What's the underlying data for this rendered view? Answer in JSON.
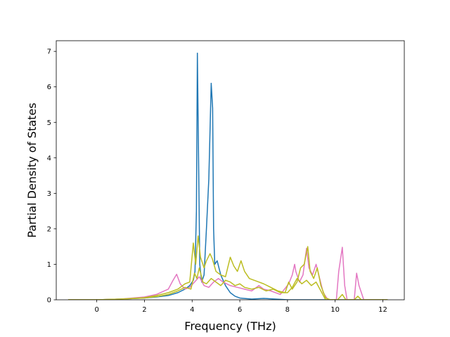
{
  "chart_data": {
    "type": "line",
    "title": "",
    "xlabel": "Frequency (THz)",
    "ylabel": "Partial Density of States",
    "xlim": [
      -1.7,
      12.9
    ],
    "ylim": [
      0,
      7.3
    ],
    "x_ticks": [
      0,
      2,
      4,
      6,
      8,
      10,
      12
    ],
    "y_ticks": [
      0,
      1,
      2,
      3,
      4,
      5,
      6,
      7
    ],
    "grid": false,
    "legend": "none",
    "series": [
      {
        "color": "#1f77b4",
        "points": [
          [
            -1.2,
            0
          ],
          [
            0,
            0
          ],
          [
            1,
            0.02
          ],
          [
            2,
            0.05
          ],
          [
            2.5,
            0.08
          ],
          [
            3,
            0.12
          ],
          [
            3.4,
            0.2
          ],
          [
            3.7,
            0.3
          ],
          [
            3.9,
            0.4
          ],
          [
            4.05,
            0.55
          ],
          [
            4.12,
            0.8
          ],
          [
            4.18,
            2.5
          ],
          [
            4.22,
            6.95
          ],
          [
            4.27,
            4
          ],
          [
            4.32,
            1
          ],
          [
            4.4,
            0.5
          ],
          [
            4.5,
            0.7
          ],
          [
            4.6,
            2
          ],
          [
            4.7,
            3.4
          ],
          [
            4.8,
            6.1
          ],
          [
            4.86,
            5.4
          ],
          [
            4.9,
            2
          ],
          [
            4.95,
            1
          ],
          [
            5.05,
            1.1
          ],
          [
            5.2,
            0.7
          ],
          [
            5.4,
            0.4
          ],
          [
            5.6,
            0.2
          ],
          [
            5.8,
            0.1
          ],
          [
            6,
            0.05
          ],
          [
            6.5,
            0.02
          ],
          [
            7,
            0.04
          ],
          [
            7.5,
            0.02
          ],
          [
            8,
            0
          ],
          [
            12.2,
            0
          ]
        ]
      },
      {
        "color": "#e377c2",
        "points": [
          [
            -1.2,
            0
          ],
          [
            0,
            0
          ],
          [
            1,
            0.02
          ],
          [
            2,
            0.08
          ],
          [
            2.5,
            0.15
          ],
          [
            3,
            0.3
          ],
          [
            3.2,
            0.55
          ],
          [
            3.35,
            0.72
          ],
          [
            3.5,
            0.45
          ],
          [
            3.7,
            0.3
          ],
          [
            3.9,
            0.35
          ],
          [
            4.1,
            0.5
          ],
          [
            4.3,
            0.65
          ],
          [
            4.5,
            0.4
          ],
          [
            4.7,
            0.35
          ],
          [
            4.9,
            0.5
          ],
          [
            5.1,
            0.6
          ],
          [
            5.3,
            0.5
          ],
          [
            5.6,
            0.4
          ],
          [
            5.9,
            0.35
          ],
          [
            6.2,
            0.3
          ],
          [
            6.5,
            0.25
          ],
          [
            6.8,
            0.4
          ],
          [
            7,
            0.3
          ],
          [
            7.3,
            0.25
          ],
          [
            7.7,
            0.15
          ],
          [
            8.05,
            0.45
          ],
          [
            8.2,
            0.7
          ],
          [
            8.3,
            1.0
          ],
          [
            8.35,
            0.8
          ],
          [
            8.5,
            0.5
          ],
          [
            8.65,
            0.7
          ],
          [
            8.8,
            1.45
          ],
          [
            8.9,
            0.9
          ],
          [
            9.05,
            0.7
          ],
          [
            9.2,
            1.0
          ],
          [
            9.35,
            0.6
          ],
          [
            9.5,
            0.2
          ],
          [
            9.7,
            0
          ],
          [
            10.05,
            0
          ],
          [
            10.15,
            0.8
          ],
          [
            10.3,
            1.48
          ],
          [
            10.4,
            0.4
          ],
          [
            10.5,
            0
          ],
          [
            10.8,
            0
          ],
          [
            10.9,
            0.75
          ],
          [
            11,
            0.4
          ],
          [
            11.2,
            0
          ],
          [
            12.2,
            0
          ]
        ]
      },
      {
        "color": "#bcbd22",
        "points": [
          [
            -1.2,
            0
          ],
          [
            0,
            0
          ],
          [
            1,
            0.02
          ],
          [
            2,
            0.06
          ],
          [
            2.5,
            0.12
          ],
          [
            3,
            0.2
          ],
          [
            3.4,
            0.3
          ],
          [
            3.7,
            0.45
          ],
          [
            3.9,
            0.5
          ],
          [
            4.05,
            1.6
          ],
          [
            4.15,
            1.0
          ],
          [
            4.25,
            1.8
          ],
          [
            4.35,
            1.2
          ],
          [
            4.5,
            0.9
          ],
          [
            4.6,
            1.1
          ],
          [
            4.75,
            1.3
          ],
          [
            4.85,
            1.15
          ],
          [
            5,
            0.8
          ],
          [
            5.2,
            0.7
          ],
          [
            5.4,
            0.65
          ],
          [
            5.6,
            1.2
          ],
          [
            5.75,
            0.95
          ],
          [
            5.9,
            0.8
          ],
          [
            6.05,
            1.1
          ],
          [
            6.2,
            0.8
          ],
          [
            6.4,
            0.6
          ],
          [
            6.6,
            0.55
          ],
          [
            6.8,
            0.5
          ],
          [
            7,
            0.45
          ],
          [
            7.3,
            0.35
          ],
          [
            7.6,
            0.25
          ],
          [
            7.9,
            0.2
          ],
          [
            8.05,
            0.5
          ],
          [
            8.2,
            0.3
          ],
          [
            8.4,
            0.5
          ],
          [
            8.55,
            0.9
          ],
          [
            8.7,
            1.0
          ],
          [
            8.85,
            1.5
          ],
          [
            8.95,
            0.8
          ],
          [
            9.1,
            0.6
          ],
          [
            9.25,
            0.9
          ],
          [
            9.4,
            0.4
          ],
          [
            9.6,
            0.05
          ],
          [
            9.8,
            0
          ],
          [
            12.2,
            0
          ]
        ]
      },
      {
        "color": "#bcbd22",
        "points": [
          [
            -1.2,
            0
          ],
          [
            0,
            0
          ],
          [
            1,
            0.02
          ],
          [
            2,
            0.05
          ],
          [
            2.6,
            0.1
          ],
          [
            3,
            0.15
          ],
          [
            3.4,
            0.25
          ],
          [
            3.7,
            0.35
          ],
          [
            3.95,
            0.3
          ],
          [
            4.1,
            0.75
          ],
          [
            4.2,
            0.6
          ],
          [
            4.3,
            0.9
          ],
          [
            4.45,
            0.5
          ],
          [
            4.6,
            0.45
          ],
          [
            4.8,
            0.6
          ],
          [
            5,
            0.5
          ],
          [
            5.2,
            0.4
          ],
          [
            5.4,
            0.55
          ],
          [
            5.6,
            0.5
          ],
          [
            5.8,
            0.4
          ],
          [
            6,
            0.45
          ],
          [
            6.2,
            0.35
          ],
          [
            6.5,
            0.3
          ],
          [
            6.8,
            0.35
          ],
          [
            7.1,
            0.25
          ],
          [
            7.4,
            0.3
          ],
          [
            7.7,
            0.2
          ],
          [
            8,
            0.2
          ],
          [
            8.2,
            0.35
          ],
          [
            8.4,
            0.6
          ],
          [
            8.6,
            0.45
          ],
          [
            8.8,
            0.55
          ],
          [
            9,
            0.4
          ],
          [
            9.2,
            0.5
          ],
          [
            9.4,
            0.25
          ],
          [
            9.6,
            0
          ],
          [
            10.1,
            0
          ],
          [
            10.3,
            0.15
          ],
          [
            10.45,
            0
          ],
          [
            10.8,
            0
          ],
          [
            10.95,
            0.1
          ],
          [
            11.1,
            0
          ],
          [
            12.2,
            0
          ]
        ]
      }
    ]
  }
}
